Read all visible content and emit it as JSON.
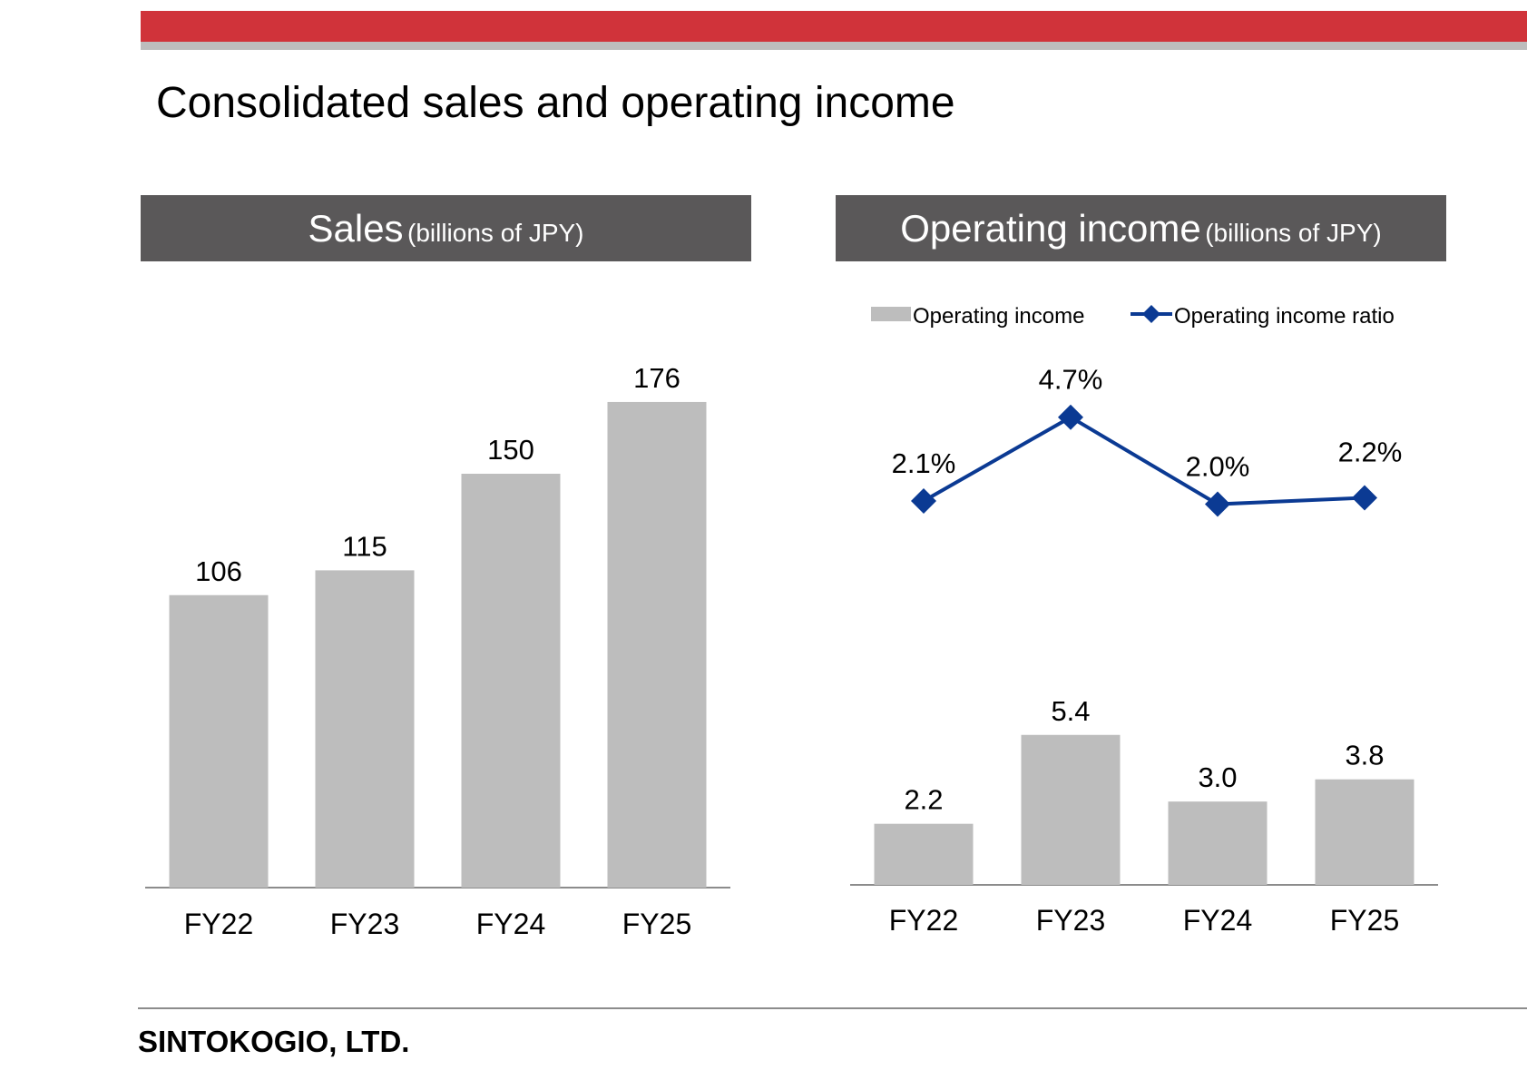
{
  "page": {
    "title": "Consolidated sales and operating income",
    "company": "SINTOKOGIO, LTD."
  },
  "colors": {
    "accent_red": "#d0333a",
    "header_gray": "#5a5859",
    "bar_gray": "#bdbdbd",
    "line_blue": "#0b3a93"
  },
  "chart_data": [
    {
      "type": "bar",
      "header": {
        "title": "Sales",
        "unit": "(billions of JPY)"
      },
      "categories": [
        "FY22",
        "FY23",
        "FY24",
        "FY25"
      ],
      "series": [
        {
          "values": [
            106,
            115,
            150,
            176
          ]
        }
      ],
      "value_labels": [
        "106",
        "115",
        "150",
        "176"
      ],
      "ylim": [
        0,
        200
      ],
      "grid": false,
      "legend": null
    },
    {
      "type": "bar",
      "header": {
        "title": "Operating income",
        "unit": "(billions of JPY)"
      },
      "categories": [
        "FY22",
        "FY23",
        "FY24",
        "FY25"
      ],
      "series": [
        {
          "name": "Operating income",
          "type": "bar",
          "values": [
            2.2,
            5.4,
            3.0,
            3.8
          ],
          "value_labels": [
            "2.2",
            "5.4",
            "3.0",
            "3.8"
          ]
        },
        {
          "name": "Operating income ratio",
          "type": "line",
          "unit": "%",
          "values": [
            2.1,
            4.7,
            2.0,
            2.2
          ],
          "value_labels": [
            "2.1%",
            "4.7%",
            "2.0%",
            "2.2%"
          ]
        }
      ],
      "ylim": [
        0,
        10
      ],
      "y2lim": [
        -4,
        6
      ],
      "grid": false,
      "legend": "top"
    }
  ]
}
